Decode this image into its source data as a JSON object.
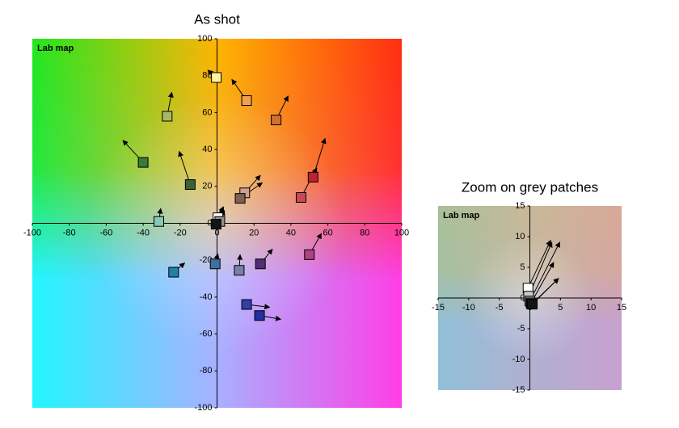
{
  "chart_data": [
    {
      "type": "scatter",
      "title": "As shot",
      "subtitle": "Lab map",
      "xlim": [
        -100,
        100
      ],
      "ylim": [
        -100,
        100
      ],
      "xticks": [
        -100,
        -80,
        -60,
        -40,
        -20,
        0,
        20,
        40,
        60,
        80,
        100
      ],
      "yticks": [
        -100,
        -80,
        -60,
        -40,
        -20,
        0,
        20,
        40,
        60,
        80,
        100
      ],
      "background": [
        "#22e61e",
        "#ffb400",
        "#ff2e10",
        "#22f6ff",
        "#a8b0ff",
        "#ff3ee6"
      ],
      "points": [
        {
          "x": -0.4,
          "y": 79,
          "x2": -5,
          "y2": 83,
          "color": "#fff2a0"
        },
        {
          "x": 16,
          "y": 66.5,
          "x2": 8,
          "y2": 78,
          "color": "#f0a050"
        },
        {
          "x": 32,
          "y": 56,
          "x2": 38.5,
          "y2": 69,
          "color": "#d07030"
        },
        {
          "x": -27,
          "y": 58,
          "x2": -24.5,
          "y2": 71,
          "color": "#a8b868"
        },
        {
          "x": -40,
          "y": 33,
          "x2": -51,
          "y2": 45,
          "color": "#3a7a3a"
        },
        {
          "x": -14.5,
          "y": 21,
          "x2": -20.5,
          "y2": 39,
          "color": "#3f6030"
        },
        {
          "x": 52,
          "y": 25,
          "x2": 58.5,
          "y2": 46,
          "color": "#c02030"
        },
        {
          "x": 45.5,
          "y": 14,
          "x2": 54,
          "y2": 30,
          "color": "#c84858"
        },
        {
          "x": 15,
          "y": 16.5,
          "x2": 23.5,
          "y2": 26,
          "color": "#d0a090"
        },
        {
          "x": 12.5,
          "y": 13.5,
          "x2": 24.5,
          "y2": 22,
          "color": "#806050"
        },
        {
          "x": -31.5,
          "y": 1,
          "x2": -30.5,
          "y2": 8,
          "color": "#88c8b8"
        },
        {
          "x": 0.5,
          "y": 3,
          "x2": 3.5,
          "y2": 9,
          "color": "#ffffff"
        },
        {
          "x": 1.5,
          "y": 1,
          "x2": 4,
          "y2": 7,
          "color": "#909090"
        },
        {
          "x": -0.5,
          "y": -0.5,
          "x2": 3.5,
          "y2": 8,
          "color": "#141414"
        },
        {
          "x": 50,
          "y": -17,
          "x2": 56.5,
          "y2": -5.5,
          "color": "#b04080"
        },
        {
          "x": 23.5,
          "y": -22,
          "x2": 30,
          "y2": -14,
          "color": "#503070"
        },
        {
          "x": 12,
          "y": -25.5,
          "x2": 12.5,
          "y2": -17,
          "color": "#7880a8"
        },
        {
          "x": -1,
          "y": -22,
          "x2": 0.5,
          "y2": -16.5,
          "color": "#4070a0"
        },
        {
          "x": -23.5,
          "y": -26.5,
          "x2": -17.5,
          "y2": -21.5,
          "color": "#2080a8"
        },
        {
          "x": 16,
          "y": -44,
          "x2": 28.5,
          "y2": -45.5,
          "color": "#3040a8"
        },
        {
          "x": 23,
          "y": -50,
          "x2": 34.5,
          "y2": -52,
          "color": "#2030a0"
        }
      ]
    },
    {
      "type": "scatter",
      "title": "Zoom on grey patches",
      "subtitle": "Lab map",
      "xlim": [
        -15,
        15
      ],
      "ylim": [
        -15,
        15
      ],
      "xticks": [
        -15,
        -10,
        -5,
        0,
        5,
        10,
        15
      ],
      "yticks": [
        -15,
        -10,
        -5,
        0,
        5,
        10,
        15
      ],
      "background": [
        "#a8c098",
        "#c8b898",
        "#d8a898",
        "#90c0d8",
        "#b0b0d0",
        "#c8a0d0"
      ],
      "points": [
        {
          "x": -0.3,
          "y": 1.6,
          "x2": 3.4,
          "y2": 9.4,
          "color": "#ffffff"
        },
        {
          "x": -0.2,
          "y": 0.3,
          "x2": 3.6,
          "y2": 9.1,
          "color": "#c8c8c8"
        },
        {
          "x": 0,
          "y": -0.5,
          "x2": 4.9,
          "y2": 9.1,
          "color": "#969696"
        },
        {
          "x": 0.2,
          "y": -0.8,
          "x2": 3.9,
          "y2": 5.8,
          "color": "#646464"
        },
        {
          "x": 0.3,
          "y": -1,
          "x2": 4.7,
          "y2": 3.2,
          "color": "#3c3c3c"
        },
        {
          "x": 0.4,
          "y": -1,
          "x2": 4.7,
          "y2": 3.2,
          "color": "#141414"
        }
      ]
    }
  ]
}
